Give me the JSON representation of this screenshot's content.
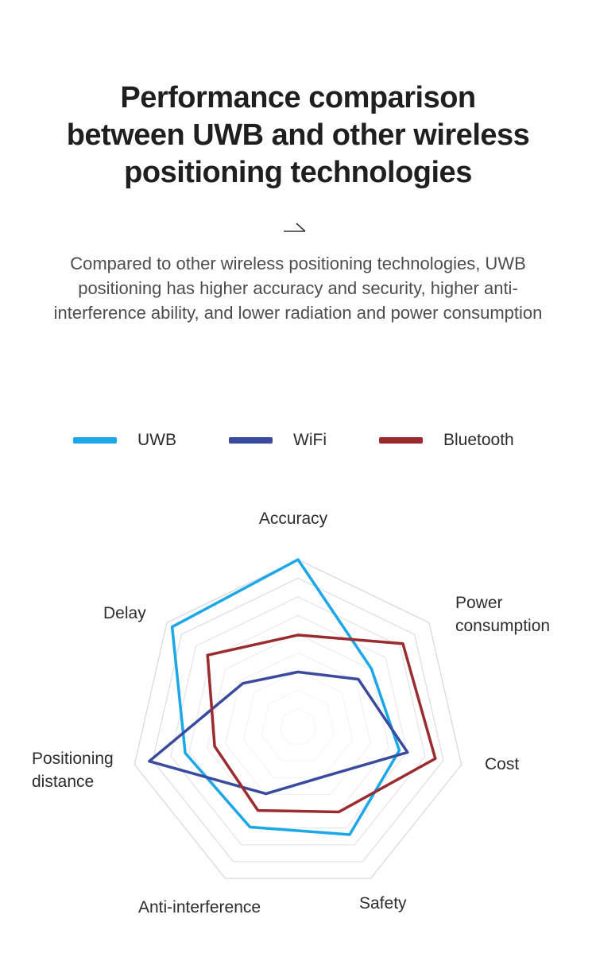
{
  "title": {
    "lines": [
      "Performance comparison",
      "between UWB and other wireless",
      "positioning technologies"
    ]
  },
  "arrow_icon": "arrow-right",
  "description": {
    "text": "Compared to other wireless positioning technologies, UWB positioning has higher accuracy and security, higher anti-interference ability, and lower radiation and power consumption"
  },
  "legend": {
    "items": [
      {
        "label": "UWB",
        "color": "#1BA7E8"
      },
      {
        "label": "WiFi",
        "color": "#3A4A9F"
      },
      {
        "label": "Bluetooth",
        "color": "#9B2B2E"
      }
    ]
  },
  "chart_data": {
    "type": "radar",
    "axes": [
      "Accuracy",
      "Power consumption",
      "Cost",
      "Safety",
      "Anti-interference",
      "Positioning distance",
      "Delay"
    ],
    "range": [
      0,
      100
    ],
    "max": 100,
    "rings": 9,
    "start_angle_deg": 90,
    "direction": "clockwise",
    "grid": true,
    "grid_color": "#d9d9d9",
    "fill": "none",
    "legend_position": "top",
    "series": [
      {
        "name": "UWB",
        "color": "#1BA7E8",
        "values": [
          100,
          56,
          62,
          71,
          66,
          69,
          96
        ]
      },
      {
        "name": "WiFi",
        "color": "#3A4A9F",
        "values": [
          33,
          46,
          67,
          33,
          44,
          91,
          42
        ]
      },
      {
        "name": "Bluetooth",
        "color": "#9B2B2E",
        "values": [
          55,
          80,
          84,
          56,
          55,
          51,
          69
        ]
      }
    ]
  }
}
